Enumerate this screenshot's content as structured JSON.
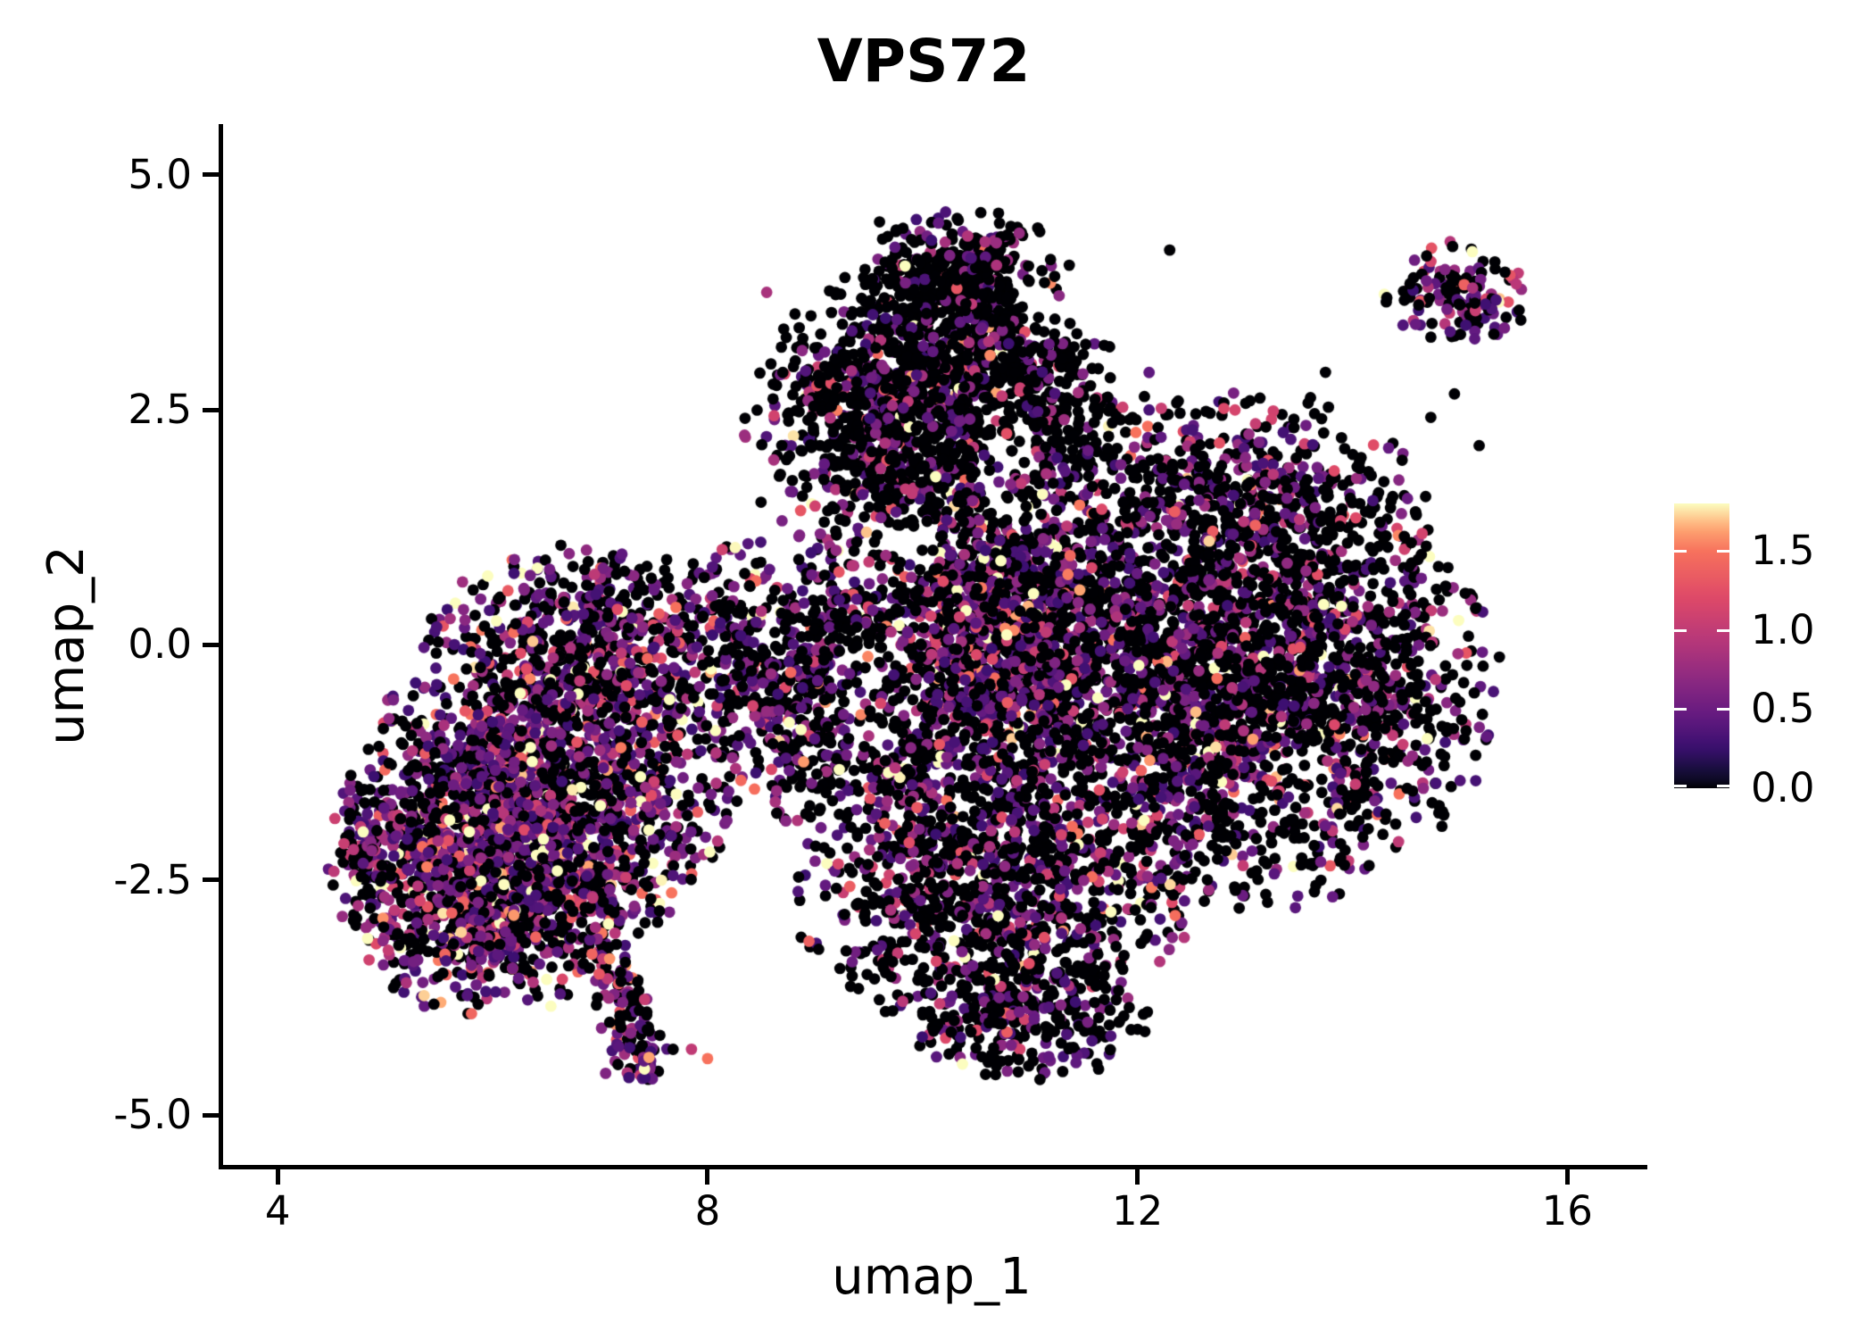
{
  "title": "VPS72",
  "chart_data": {
    "type": "scatter",
    "title": "VPS72",
    "xlabel": "umap_1",
    "ylabel": "umap_2",
    "x_ticks": [
      {
        "value": 4,
        "label": "4"
      },
      {
        "value": 8,
        "label": "8"
      },
      {
        "value": 12,
        "label": "12"
      },
      {
        "value": 16,
        "label": "16"
      }
    ],
    "y_ticks": [
      {
        "value": 5.0,
        "label": "5.0"
      },
      {
        "value": 2.5,
        "label": "2.5"
      },
      {
        "value": 0.0,
        "label": "0.0"
      },
      {
        "value": -2.5,
        "label": "-2.5"
      },
      {
        "value": -5.0,
        "label": "-5.0"
      }
    ],
    "xlim": [
      3.45,
      16.72
    ],
    "ylim": [
      -5.55,
      5.54
    ],
    "grid": false,
    "legend_position": "right",
    "colorbar": {
      "ticks": [
        {
          "value": 1.5,
          "label": "1.5"
        },
        {
          "value": 1.0,
          "label": "1.0"
        },
        {
          "value": 0.5,
          "label": "0.5"
        },
        {
          "value": 0.0,
          "label": "0.0"
        }
      ],
      "vmin": 0.0,
      "vmax": 1.8,
      "colormap": "magma",
      "gamma": 0.72,
      "anchors": [
        [
          0.0,
          "#000004"
        ],
        [
          0.125,
          "#140E36"
        ],
        [
          0.25,
          "#3B0F70"
        ],
        [
          0.375,
          "#641A80"
        ],
        [
          0.5,
          "#8C2981"
        ],
        [
          0.625,
          "#B73779"
        ],
        [
          0.75,
          "#DE4968"
        ],
        [
          0.875,
          "#F7705C"
        ],
        [
          0.9375,
          "#FEA772"
        ],
        [
          1.0,
          "#FCFDBF"
        ]
      ]
    },
    "points": {
      "seed": 1234,
      "radius_px": 6.4,
      "zero_color": "#000004",
      "clusters": [
        {
          "name": "left-main",
          "n": 2000,
          "cx": 6.35,
          "cy": -1.75,
          "sx": 0.8,
          "sy": 0.75,
          "trunc": 2.3,
          "p_zero": 0.4,
          "expr_scale": 0.5
        },
        {
          "name": "left-top",
          "n": 680,
          "cx": 6.95,
          "cy": -0.05,
          "sx": 0.78,
          "sy": 0.55,
          "trunc": 2.1,
          "p_zero": 0.5,
          "expr_scale": 0.48
        },
        {
          "name": "left-bottom",
          "n": 430,
          "cx": 5.95,
          "cy": -2.95,
          "sx": 0.62,
          "sy": 0.48,
          "trunc": 2.1,
          "p_zero": 0.44,
          "expr_scale": 0.5
        },
        {
          "name": "left-west-tip",
          "n": 160,
          "cx": 5.05,
          "cy": -2.35,
          "sx": 0.3,
          "sy": 0.45,
          "trunc": 2.0,
          "p_zero": 0.42,
          "expr_scale": 0.5
        },
        {
          "name": "tail-tip",
          "n": 22,
          "cx": 7.4,
          "cy": -4.52,
          "sx": 0.09,
          "sy": 0.09,
          "trunc": 2.0,
          "p_zero": 0.25,
          "expr_scale": 0.42
        },
        {
          "name": "bridge",
          "n": 500,
          "cx": 8.75,
          "cy": -0.35,
          "sx": 0.62,
          "sy": 0.8,
          "trunc": 2.1,
          "p_zero": 0.55,
          "expr_scale": 0.45
        },
        {
          "name": "center",
          "n": 1150,
          "cx": 10.15,
          "cy": -0.35,
          "sx": 0.78,
          "sy": 0.95,
          "trunc": 2.2,
          "p_zero": 0.56,
          "expr_scale": 0.48
        },
        {
          "name": "center-strip",
          "n": 620,
          "cx": 10.9,
          "cy": 0.55,
          "sx": 0.45,
          "sy": 0.8,
          "trunc": 2.1,
          "p_zero": 0.48,
          "expr_scale": 0.55
        },
        {
          "name": "top-lobe",
          "n": 1380,
          "cx": 10.3,
          "cy": 2.65,
          "sx": 0.8,
          "sy": 0.66,
          "trunc": 2.3,
          "p_zero": 0.74,
          "expr_scale": 0.42
        },
        {
          "name": "summit",
          "n": 320,
          "cx": 10.45,
          "cy": 3.95,
          "sx": 0.5,
          "sy": 0.34,
          "trunc": 2.0,
          "p_zero": 0.8,
          "expr_scale": 0.4
        },
        {
          "name": "topleft-edge",
          "n": 170,
          "cx": 9.25,
          "cy": 2.15,
          "sx": 0.48,
          "sy": 0.52,
          "trunc": 2.0,
          "p_zero": 0.6,
          "expr_scale": 0.5
        },
        {
          "name": "right-lobe",
          "n": 2750,
          "cx": 12.9,
          "cy": -0.4,
          "sx": 1.08,
          "sy": 1.08,
          "trunc": 2.3,
          "p_zero": 0.62,
          "expr_scale": 0.44
        },
        {
          "name": "right-top",
          "n": 430,
          "cx": 13.05,
          "cy": 1.65,
          "sx": 0.78,
          "sy": 0.5,
          "trunc": 2.1,
          "p_zero": 0.62,
          "expr_scale": 0.44
        },
        {
          "name": "bottom-center",
          "n": 950,
          "cx": 10.7,
          "cy": -2.65,
          "sx": 0.88,
          "sy": 0.72,
          "trunc": 2.2,
          "p_zero": 0.62,
          "expr_scale": 0.44
        },
        {
          "name": "bottom-deep",
          "n": 240,
          "cx": 10.95,
          "cy": -3.95,
          "sx": 0.58,
          "sy": 0.36,
          "trunc": 2.0,
          "p_zero": 0.68,
          "expr_scale": 0.4
        },
        {
          "name": "satellite",
          "n": 135,
          "cx": 14.95,
          "cy": 3.72,
          "sx": 0.34,
          "sy": 0.28,
          "trunc": 2.1,
          "p_zero": 0.46,
          "expr_scale": 0.5
        }
      ],
      "tail": {
        "n": 115,
        "x0": 7.12,
        "y0": -3.3,
        "x1": 7.42,
        "y1": -4.48,
        "jitter": 0.13,
        "p_zero": 0.45,
        "expr_scale": 0.52
      },
      "holes": [
        {
          "cx": 9.55,
          "cy": -0.55,
          "rx": 0.5,
          "ry": 0.6,
          "rej": 0.7
        },
        {
          "cx": 10.78,
          "cy": 2.05,
          "rx": 0.28,
          "ry": 0.75,
          "rej": 0.75
        },
        {
          "cx": 12.05,
          "cy": 3.1,
          "rx": 0.6,
          "ry": 0.55,
          "rej": 0.75
        },
        {
          "cx": 13.35,
          "cy": -1.45,
          "rx": 0.45,
          "ry": 0.4,
          "rej": 0.6
        },
        {
          "cx": 11.6,
          "cy": 3.9,
          "rx": 0.8,
          "ry": 0.6,
          "rej": 0.8
        }
      ],
      "singles": [
        [
          14.95,
          2.67,
          0
        ],
        [
          14.73,
          2.42,
          0
        ],
        [
          15.18,
          2.12,
          0
        ],
        [
          14.5,
          1.05,
          0
        ],
        [
          15.05,
          0.55,
          0
        ],
        [
          9.6,
          4.5,
          0
        ],
        [
          8.55,
          3.75,
          0.85
        ],
        [
          12.3,
          4.2,
          0
        ],
        [
          13.75,
          2.9,
          0
        ],
        [
          4.85,
          -3.35,
          1.1
        ],
        [
          5.1,
          -3.6,
          0
        ],
        [
          8.0,
          -4.4,
          1.5
        ],
        [
          7.85,
          -4.3,
          1.0
        ]
      ]
    }
  }
}
